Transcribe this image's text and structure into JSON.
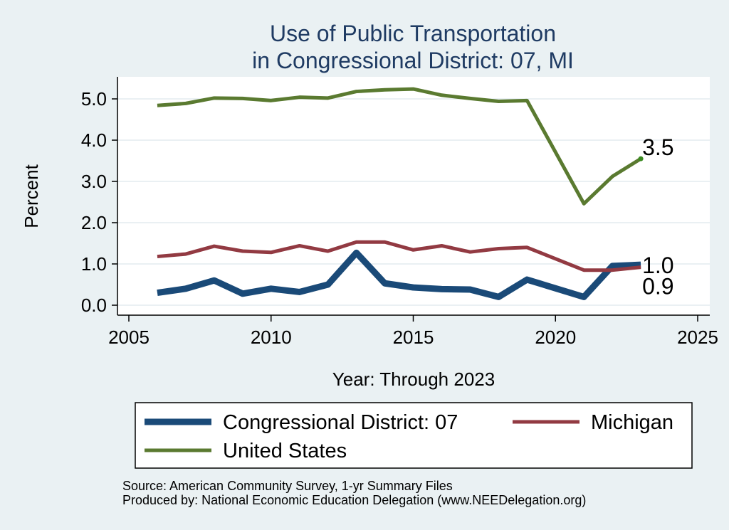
{
  "chart_data": {
    "type": "line",
    "title": "Use of Public Transportation",
    "subtitle": "in Congressional District: 07, MI",
    "xlabel": "Year: Through 2023",
    "ylabel": "Percent",
    "xlim": [
      2005,
      2025
    ],
    "ylim": [
      0,
      5.5
    ],
    "x_ticks": [
      "2005",
      "2010",
      "2015",
      "2020",
      "2025"
    ],
    "y_ticks": [
      "0.0",
      "1.0",
      "2.0",
      "3.0",
      "4.0",
      "5.0"
    ],
    "grid": true,
    "legend_position": "bottom",
    "x": [
      2006,
      2007,
      2008,
      2009,
      2010,
      2011,
      2012,
      2013,
      2014,
      2015,
      2016,
      2017,
      2018,
      2019,
      2021,
      2022,
      2023
    ],
    "series": [
      {
        "name": "Congressional District: 07",
        "color": "#1a4a78",
        "values": [
          0.3,
          0.4,
          0.6,
          0.28,
          0.4,
          0.32,
          0.5,
          1.27,
          0.53,
          0.43,
          0.39,
          0.38,
          0.2,
          0.62,
          0.2,
          0.95,
          0.98
        ],
        "end_label": "1.0"
      },
      {
        "name": "Michigan",
        "color": "#923a42",
        "values": [
          1.18,
          1.24,
          1.43,
          1.31,
          1.28,
          1.44,
          1.31,
          1.53,
          1.53,
          1.34,
          1.44,
          1.29,
          1.37,
          1.4,
          0.85,
          0.85,
          0.92
        ],
        "end_label": "0.9"
      },
      {
        "name": "United States",
        "color": "#5a7a30",
        "values": [
          4.84,
          4.89,
          5.02,
          5.01,
          4.96,
          5.04,
          5.02,
          5.18,
          5.22,
          5.24,
          5.09,
          5.01,
          4.94,
          4.96,
          2.46,
          3.12,
          3.55
        ],
        "end_label": "3.5"
      }
    ]
  },
  "footer": {
    "source": "Source: American Community Survey, 1-yr Summary Files",
    "produced_by": "Produced by: National Economic Education Delegation (www.NEEDelegation.org)"
  }
}
